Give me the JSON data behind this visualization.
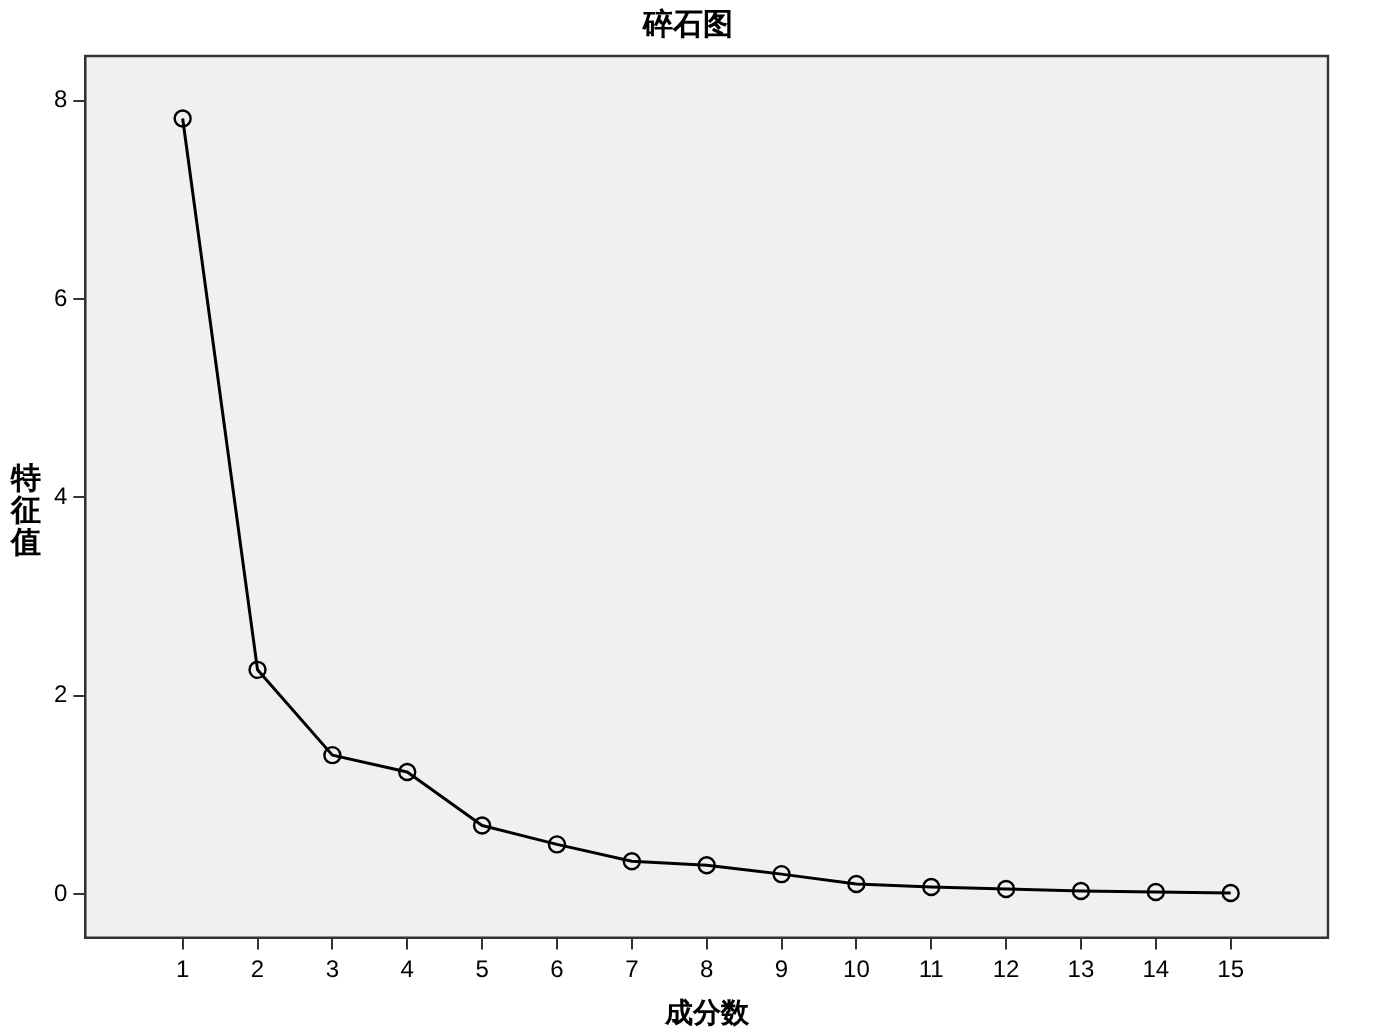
{
  "chart_data": {
    "type": "line",
    "title": "碎石图",
    "xlabel": "成分数",
    "ylabel": "特征值",
    "x": [
      1,
      2,
      3,
      4,
      5,
      6,
      7,
      8,
      9,
      10,
      11,
      12,
      13,
      14,
      15
    ],
    "series": [
      {
        "color": "#000000",
        "values": [
          7.82,
          2.26,
          1.4,
          1.23,
          0.69,
          0.5,
          0.33,
          0.29,
          0.2,
          0.1,
          0.07,
          0.05,
          0.03,
          0.02,
          0.01
        ]
      }
    ],
    "xlim": [
      -0.3,
      16.3
    ],
    "xticks": [
      1,
      2,
      3,
      4,
      5,
      6,
      7,
      8,
      9,
      10,
      11,
      12,
      13,
      14,
      15
    ],
    "ylim": [
      -0.44,
      8.45
    ],
    "yticks": [
      0,
      2,
      4,
      6,
      8
    ],
    "grid": false,
    "legend": false,
    "marker": "circle",
    "line_style": "solid"
  }
}
